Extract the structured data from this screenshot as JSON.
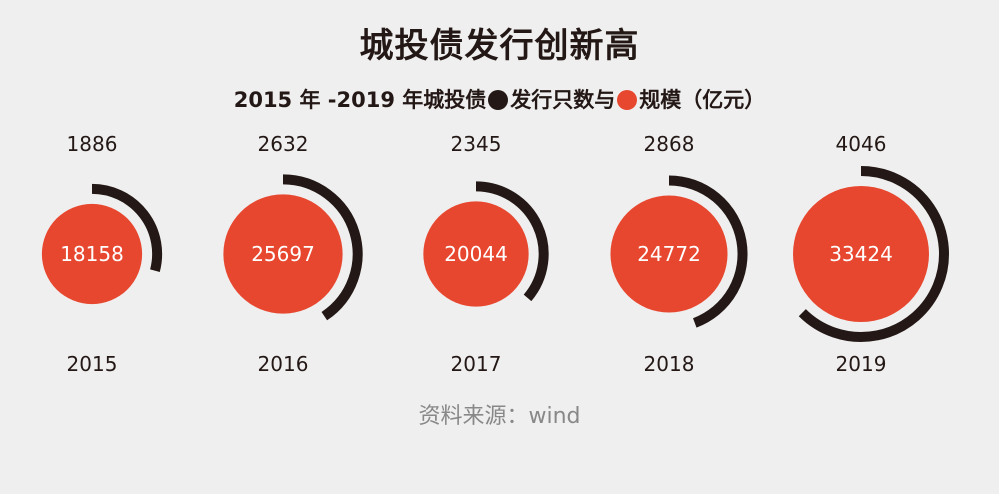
{
  "title": "城投债发行创新高",
  "subtitle": {
    "prefix": "2015 年 -2019 年城投债",
    "count_label": "发行只数与",
    "size_label": "规模（亿元）"
  },
  "source": "资料来源：wind",
  "colors": {
    "count": "#231815",
    "size": "#e8472f",
    "background": "#efefef"
  },
  "chart_data": {
    "type": "radial-bubble",
    "categories": [
      "2015",
      "2016",
      "2017",
      "2018",
      "2019"
    ],
    "series": [
      {
        "name": "发行只数",
        "values": [
          1886,
          2632,
          2345,
          2868,
          4046
        ]
      },
      {
        "name": "规模（亿元）",
        "values": [
          18158,
          25697,
          20044,
          24772,
          33424
        ]
      }
    ]
  }
}
